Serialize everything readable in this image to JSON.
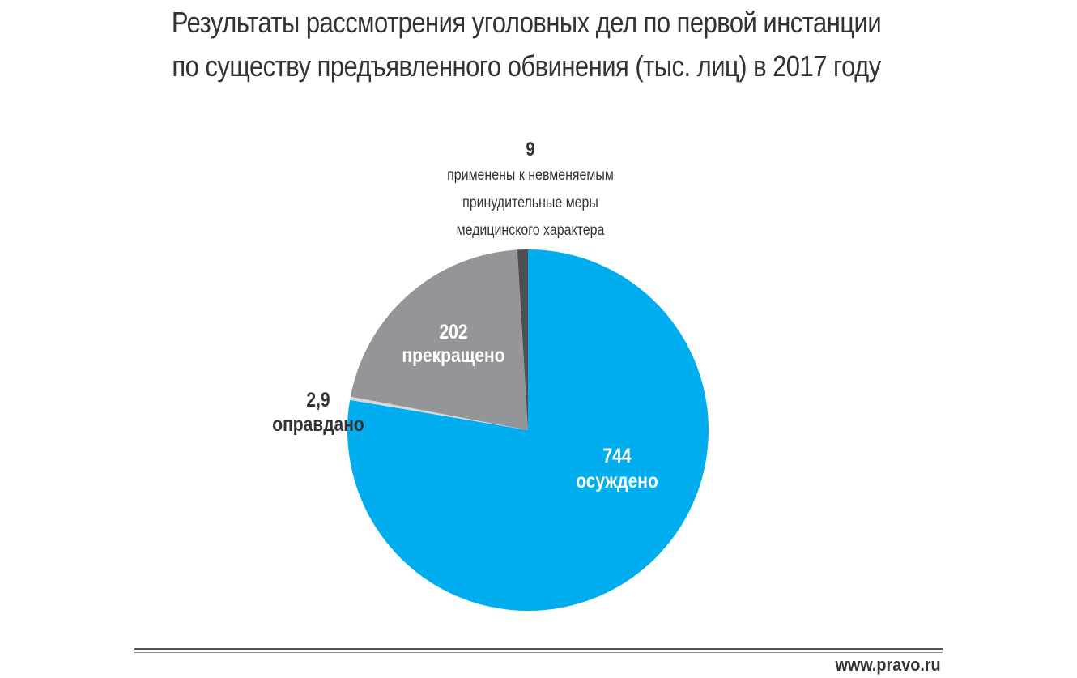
{
  "chart_data": {
    "type": "pie",
    "title_lines": [
      "Результаты рассмотрения уголовных дел по первой инстанции",
      "по существу предъявленного обвинения (тыс. лиц) в 2017 году"
    ],
    "slices": [
      {
        "key": "convicted",
        "value": 744,
        "value_label": "744",
        "label_lines": [
          "осуждено"
        ],
        "color": "#00aeef"
      },
      {
        "key": "acquitted",
        "value": 2.9,
        "value_label": "2,9",
        "label_lines": [
          "оправдано"
        ],
        "color": "#d8d8d8"
      },
      {
        "key": "terminated",
        "value": 202,
        "value_label": "202",
        "label_lines": [
          "прекращено"
        ],
        "color": "#939598"
      },
      {
        "key": "compulsory",
        "value": 9,
        "value_label": "9",
        "label_lines": [
          "применены к невменяемым",
          "принудительные меры",
          "медицинского характера"
        ],
        "color": "#4d4f53"
      }
    ],
    "start": "12 o'clock",
    "direction": "clockwise"
  },
  "footer": {
    "source": "www.pravo.ru"
  },
  "colors": {
    "text": "#333333",
    "background": "#ffffff"
  }
}
